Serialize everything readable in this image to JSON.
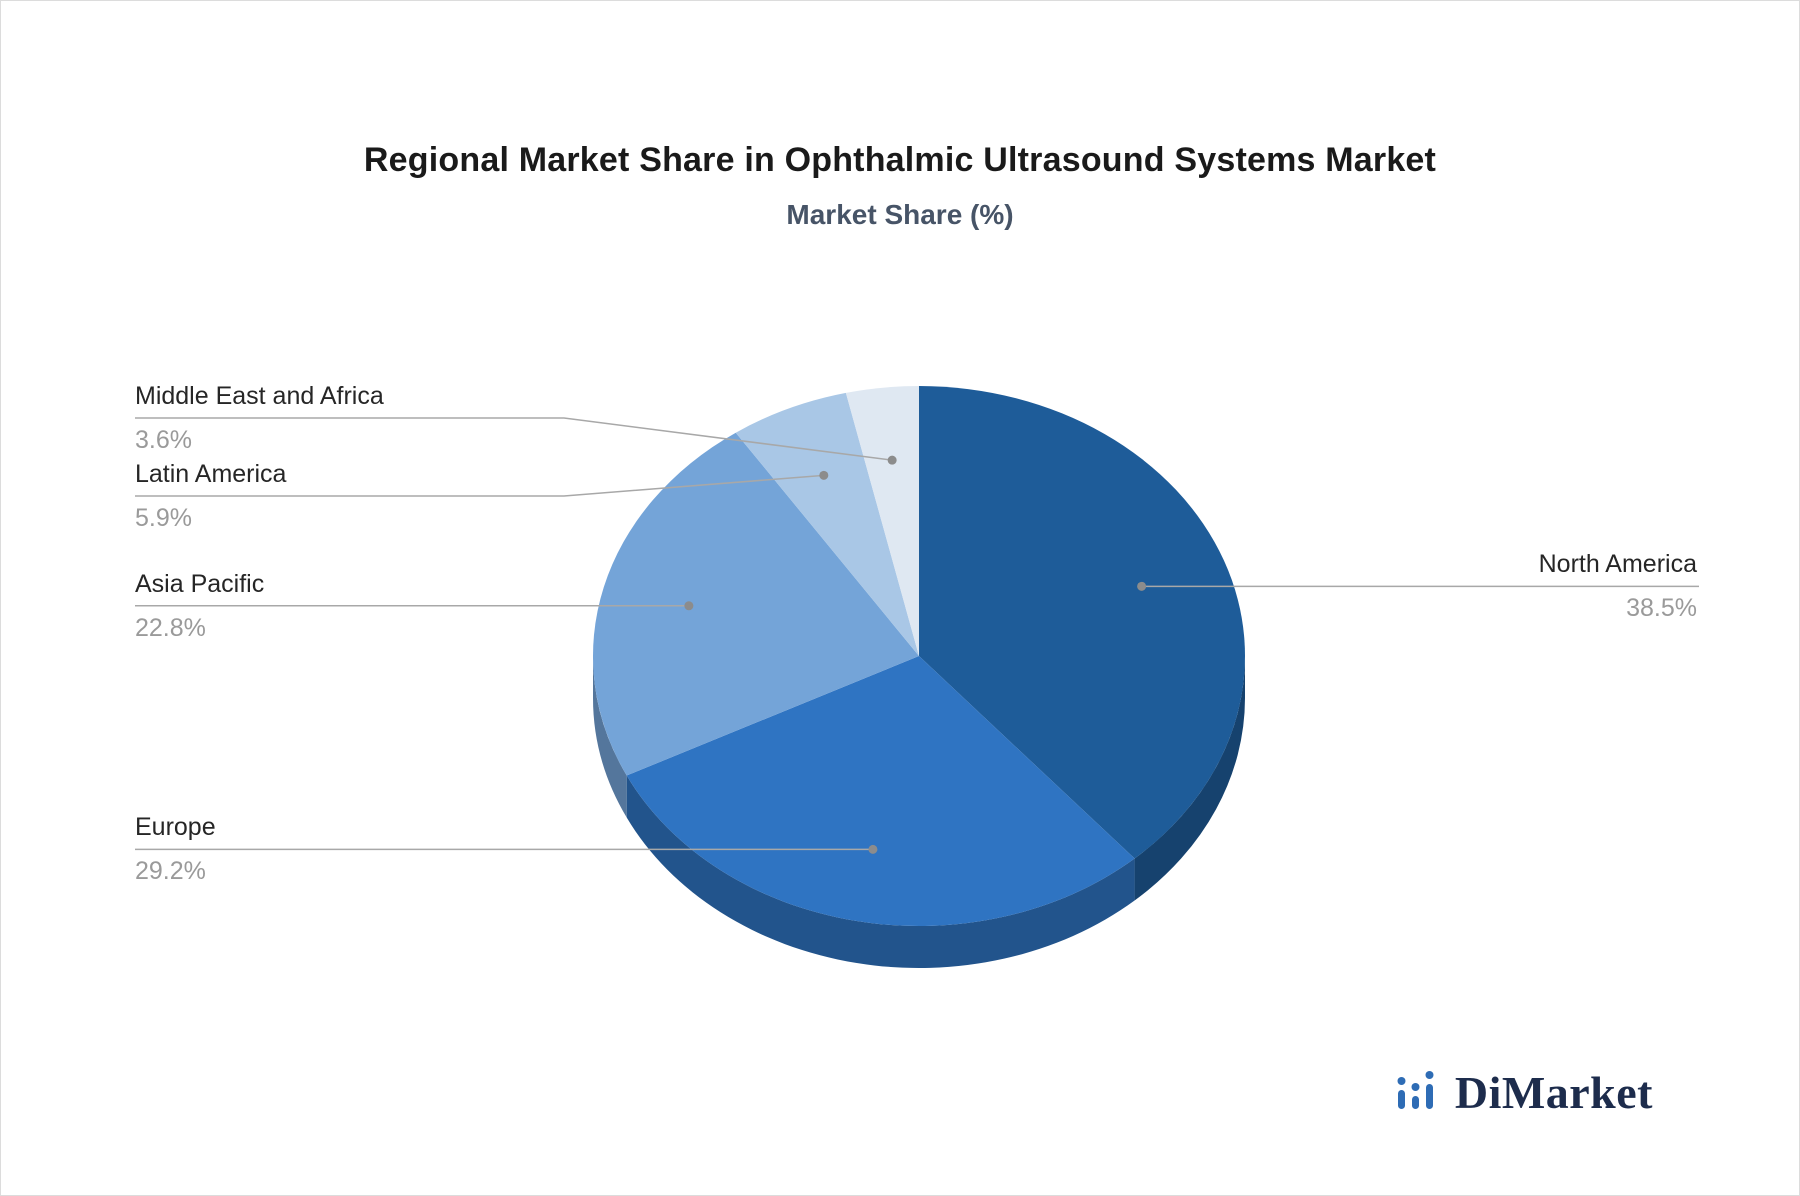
{
  "header": {
    "title": "Regional Market Share in Ophthalmic Ultrasound Systems Market",
    "subtitle": "Market Share (%)"
  },
  "chart_data": {
    "type": "pie",
    "style": "3d-pie",
    "title": "Regional Market Share in Ophthalmic Ultrasound Systems Market",
    "subtitle": "Market Share (%)",
    "unit": "%",
    "start_angle_deg": 0,
    "direction": "clockwise",
    "labels_layout": "outside-leader-lines",
    "legend": "none",
    "slices": [
      {
        "label": "North America",
        "value": 38.5,
        "display": "38.5%",
        "color": "#1e5c99"
      },
      {
        "label": "Europe",
        "value": 29.2,
        "display": "29.2%",
        "color": "#2f74c2"
      },
      {
        "label": "Asia Pacific",
        "value": 22.8,
        "display": "22.8%",
        "color": "#74a4d8"
      },
      {
        "label": "Latin America",
        "value": 5.9,
        "display": "5.9%",
        "color": "#a9c7e6"
      },
      {
        "label": "Middle East and Africa",
        "value": 3.6,
        "display": "3.6%",
        "color": "#dfe8f2"
      }
    ]
  },
  "branding": {
    "logo_text": "DiMarket",
    "logo_icon": "bar-chart-logo-icon",
    "icon_color": "#2e6cb5",
    "text_color": "#1d2c4c"
  },
  "colors": {
    "background": "#ffffff",
    "title": "#1a1a1a",
    "subtitle": "#475467",
    "label_text": "#262626",
    "value_text": "#9a9a9a",
    "leader_line": "#a8a8a8",
    "leader_dot": "#8c8c8c"
  }
}
